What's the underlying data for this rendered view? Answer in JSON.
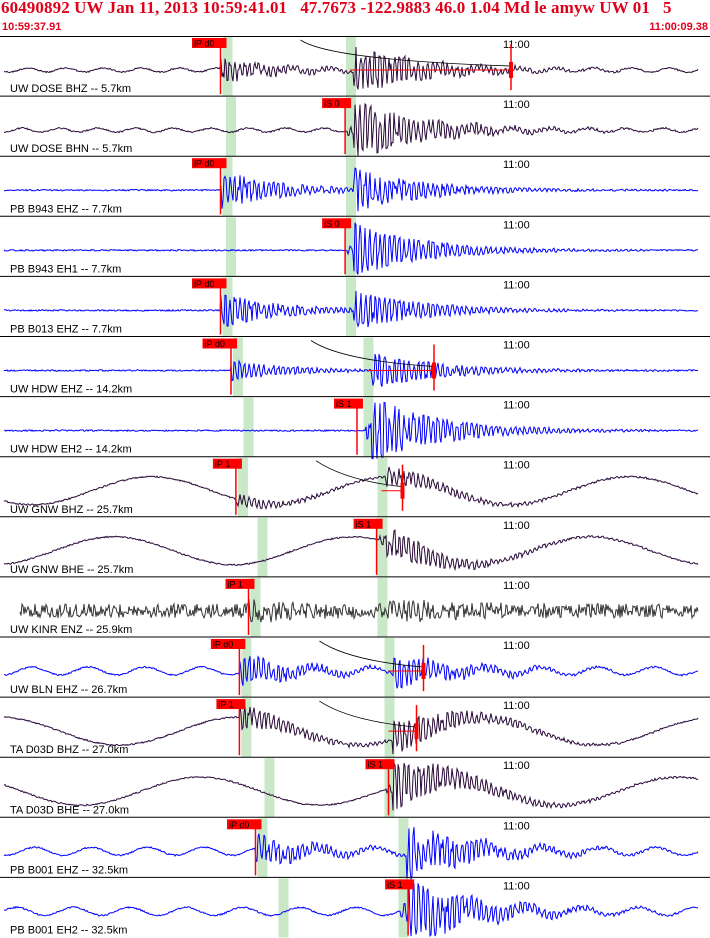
{
  "header": {
    "title": "60490892 UW Jan 11, 2013 10:59:41.01   47.7673 -122.9883 46.0 1.04 Md le amyw UW 01   5",
    "start_time": "10:59:37.91",
    "end_time": "11:00:09.38"
  },
  "minute_label": "11:00",
  "colors": {
    "short_period": "#2a0a3a",
    "broadband_blue": "#0000ff",
    "strong_motion": "#333333",
    "pick": "#ff0000",
    "pick_window": "#c8e8c8",
    "fit_line": "#000000",
    "separator": "#000000"
  },
  "traces": [
    {
      "label": "UW DOSE BHZ -- 5.7km",
      "color": "#2a0a3a",
      "style": "short",
      "pick": {
        "text": "iP d0",
        "t": 0.315
      },
      "s_window": 0.5,
      "coda": 0.73,
      "fit": true,
      "p_amp": 0.55,
      "s_amp": 0.9
    },
    {
      "label": "UW DOSE BHN -- 5.7km",
      "color": "#2a0a3a",
      "style": "short",
      "pick": {
        "text": "iS 0",
        "t": 0.493
      },
      "s_window": 0.5,
      "coda": null,
      "fit": false,
      "p_amp": 0.2,
      "s_amp": 1.0
    },
    {
      "label": "PB B943 EHZ -- 7.7km",
      "color": "#0000ff",
      "style": "flat",
      "pick": {
        "text": "iP d0",
        "t": 0.315
      },
      "s_window": 0.5,
      "coda": null,
      "fit": false,
      "p_amp": 0.9,
      "s_amp": 0.8
    },
    {
      "label": "PB B943 EH1 -- 7.7km",
      "color": "#0000ff",
      "style": "flat",
      "pick": {
        "text": "iS 0",
        "t": 0.493
      },
      "s_window": 0.5,
      "coda": null,
      "fit": false,
      "p_amp": 0.2,
      "s_amp": 0.9
    },
    {
      "label": "PB B013 EHZ -- 7.7km",
      "color": "#0000ff",
      "style": "flat",
      "pick": {
        "text": "iP d0",
        "t": 0.315
      },
      "s_window": 0.5,
      "coda": null,
      "fit": false,
      "p_amp": 0.8,
      "s_amp": 0.7
    },
    {
      "label": "UW HDW EHZ -- 14.2km",
      "color": "#0000ff",
      "style": "flat",
      "pick": {
        "text": "iP d0",
        "t": 0.33
      },
      "s_window": 0.525,
      "coda": 0.62,
      "fit": true,
      "p_amp": 0.45,
      "s_amp": 0.7
    },
    {
      "label": "UW HDW EH2 -- 14.2km",
      "color": "#0000ff",
      "style": "flat",
      "pick": {
        "text": "iS 1",
        "t": 0.51
      },
      "s_window": 0.525,
      "coda": null,
      "fit": false,
      "p_amp": 0.4,
      "s_amp": 1.0
    },
    {
      "label": "UW GNW BHZ -- 25.7km",
      "color": "#2a0a3a",
      "style": "wave",
      "pick": {
        "text": "iP 1",
        "t": 0.337
      },
      "s_window": 0.545,
      "coda": 0.575,
      "fit": true,
      "p_amp": 0.3,
      "s_amp": 0.4
    },
    {
      "label": "UW GNW BHE -- 25.7km",
      "color": "#2a0a3a",
      "style": "wave",
      "pick": {
        "text": "iS 1",
        "t": 0.538
      },
      "s_window": 0.545,
      "coda": null,
      "fit": false,
      "p_amp": 0.2,
      "s_amp": 0.5
    },
    {
      "label": "UW KINR ENZ -- 25.9km",
      "color": "#333333",
      "style": "noise",
      "pick": {
        "text": "iP 1",
        "t": 0.355
      },
      "s_window": 0.545,
      "coda": null,
      "fit": false,
      "p_amp": 0.3,
      "s_amp": 0.3
    },
    {
      "label": "UW BLN EHZ -- 26.7km",
      "color": "#0000ff",
      "style": "blue_wave",
      "pick": {
        "text": "iP d0",
        "t": 0.342
      },
      "s_window": 0.555,
      "coda": 0.605,
      "fit": true,
      "p_amp": 0.7,
      "s_amp": 0.6
    },
    {
      "label": "TA D03D BHZ -- 27.0km",
      "color": "#2a0a3a",
      "style": "wave",
      "pick": {
        "text": "iP 1",
        "t": 0.342
      },
      "s_window": 0.555,
      "coda": 0.595,
      "fit": true,
      "p_amp": 0.6,
      "s_amp": 0.7
    },
    {
      "label": "TA D03D BHE -- 27.0km",
      "color": "#2a0a3a",
      "style": "wave",
      "pick": {
        "text": "iS 1",
        "t": 0.555
      },
      "s_window": 0.555,
      "coda": null,
      "fit": false,
      "p_amp": 0.3,
      "s_amp": 0.8
    },
    {
      "label": "PB B001 EHZ -- 32.5km",
      "color": "#0000ff",
      "style": "blue_wave",
      "pick": {
        "text": "iP d0",
        "t": 0.365
      },
      "s_window": 0.575,
      "coda": null,
      "fit": false,
      "p_amp": 0.7,
      "s_amp": 1.0
    },
    {
      "label": "PB B001 EH2 -- 32.5km",
      "color": "#0000ff",
      "style": "blue_wave",
      "pick": {
        "text": "iS 1",
        "t": 0.583
      },
      "s_window": 0.575,
      "coda": null,
      "fit": false,
      "p_amp": 0.3,
      "s_amp": 1.0
    }
  ]
}
